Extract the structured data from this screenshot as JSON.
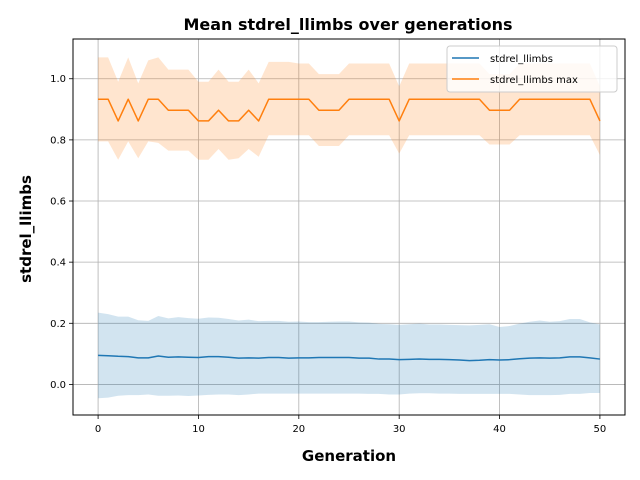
{
  "chart_data": {
    "type": "line",
    "title": "Mean stdrel_llimbs over generations",
    "xlabel": "Generation",
    "ylabel": "stdrel_llimbs",
    "xlim": [
      -2.5,
      52.5
    ],
    "ylim": [
      -0.1,
      1.13
    ],
    "xticks": [
      0,
      10,
      20,
      30,
      40,
      50
    ],
    "yticks": [
      0.0,
      0.2,
      0.4,
      0.6,
      0.8,
      1.0
    ],
    "xtick_labels": [
      "0",
      "10",
      "20",
      "30",
      "40",
      "50"
    ],
    "ytick_labels": [
      "0.0",
      "0.2",
      "0.4",
      "0.6",
      "0.8",
      "1.0"
    ],
    "grid": true,
    "legend_position": "top-right",
    "x": [
      0,
      1,
      2,
      3,
      4,
      5,
      6,
      7,
      8,
      9,
      10,
      11,
      12,
      13,
      14,
      15,
      16,
      17,
      18,
      19,
      20,
      21,
      22,
      23,
      24,
      25,
      26,
      27,
      28,
      29,
      30,
      31,
      32,
      33,
      34,
      35,
      36,
      37,
      38,
      39,
      40,
      41,
      42,
      43,
      44,
      45,
      46,
      47,
      48,
      49,
      50
    ],
    "series": [
      {
        "name": "stdrel_llimbs",
        "color": "#1f77b4",
        "values": [
          0.095,
          0.094,
          0.092,
          0.091,
          0.087,
          0.087,
          0.093,
          0.089,
          0.09,
          0.089,
          0.088,
          0.091,
          0.091,
          0.089,
          0.086,
          0.087,
          0.086,
          0.088,
          0.088,
          0.086,
          0.087,
          0.087,
          0.088,
          0.088,
          0.088,
          0.088,
          0.086,
          0.086,
          0.083,
          0.083,
          0.081,
          0.082,
          0.083,
          0.082,
          0.082,
          0.081,
          0.08,
          0.078,
          0.079,
          0.081,
          0.08,
          0.081,
          0.084,
          0.086,
          0.087,
          0.086,
          0.087,
          0.09,
          0.09,
          0.087,
          0.083
        ],
        "band_lower": [
          -0.045,
          -0.043,
          -0.037,
          -0.035,
          -0.035,
          -0.033,
          -0.037,
          -0.037,
          -0.036,
          -0.038,
          -0.036,
          -0.034,
          -0.033,
          -0.033,
          -0.035,
          -0.033,
          -0.03,
          -0.03,
          -0.03,
          -0.03,
          -0.03,
          -0.03,
          -0.03,
          -0.03,
          -0.03,
          -0.03,
          -0.03,
          -0.031,
          -0.031,
          -0.033,
          -0.033,
          -0.03,
          -0.029,
          -0.029,
          -0.03,
          -0.03,
          -0.031,
          -0.031,
          -0.031,
          -0.031,
          -0.031,
          -0.031,
          -0.033,
          -0.035,
          -0.035,
          -0.035,
          -0.034,
          -0.031,
          -0.031,
          -0.028,
          -0.028
        ],
        "band_upper": [
          0.235,
          0.23,
          0.222,
          0.222,
          0.21,
          0.208,
          0.224,
          0.216,
          0.22,
          0.217,
          0.215,
          0.219,
          0.218,
          0.214,
          0.209,
          0.212,
          0.207,
          0.208,
          0.208,
          0.205,
          0.206,
          0.204,
          0.204,
          0.205,
          0.206,
          0.206,
          0.203,
          0.202,
          0.198,
          0.197,
          0.195,
          0.197,
          0.199,
          0.196,
          0.196,
          0.195,
          0.194,
          0.193,
          0.195,
          0.197,
          0.188,
          0.191,
          0.199,
          0.205,
          0.209,
          0.205,
          0.207,
          0.214,
          0.214,
          0.203,
          0.196
        ],
        "band_alpha": 0.2
      },
      {
        "name": "stdrel_llimbs max",
        "color": "#ff7f0e",
        "values": [
          0.933,
          0.933,
          0.862,
          0.933,
          0.862,
          0.933,
          0.933,
          0.897,
          0.897,
          0.897,
          0.862,
          0.862,
          0.897,
          0.862,
          0.862,
          0.897,
          0.862,
          0.933,
          0.933,
          0.933,
          0.933,
          0.933,
          0.897,
          0.897,
          0.897,
          0.933,
          0.933,
          0.933,
          0.933,
          0.933,
          0.862,
          0.933,
          0.933,
          0.933,
          0.933,
          0.933,
          0.933,
          0.933,
          0.933,
          0.897,
          0.897,
          0.897,
          0.933,
          0.933,
          0.933,
          0.933,
          0.933,
          0.933,
          0.933,
          0.933,
          0.862
        ],
        "band_lower": [
          0.795,
          0.795,
          0.735,
          0.795,
          0.74,
          0.795,
          0.79,
          0.765,
          0.765,
          0.765,
          0.735,
          0.735,
          0.77,
          0.735,
          0.74,
          0.77,
          0.745,
          0.815,
          0.815,
          0.815,
          0.815,
          0.815,
          0.78,
          0.78,
          0.78,
          0.815,
          0.815,
          0.815,
          0.815,
          0.815,
          0.755,
          0.815,
          0.815,
          0.815,
          0.815,
          0.815,
          0.815,
          0.815,
          0.815,
          0.785,
          0.785,
          0.785,
          0.815,
          0.815,
          0.815,
          0.815,
          0.815,
          0.815,
          0.815,
          0.815,
          0.75
        ],
        "band_upper": [
          1.07,
          1.07,
          0.99,
          1.07,
          0.985,
          1.06,
          1.07,
          1.03,
          1.03,
          1.03,
          0.99,
          0.99,
          1.03,
          0.99,
          0.99,
          1.03,
          0.985,
          1.055,
          1.055,
          1.055,
          1.05,
          1.05,
          1.015,
          1.015,
          1.015,
          1.05,
          1.05,
          1.05,
          1.05,
          1.05,
          0.975,
          1.05,
          1.05,
          1.05,
          1.05,
          1.05,
          1.05,
          1.05,
          1.05,
          1.015,
          1.015,
          1.015,
          1.05,
          1.05,
          1.05,
          1.05,
          1.05,
          1.05,
          1.05,
          1.05,
          0.975
        ],
        "band_alpha": 0.2
      }
    ]
  }
}
